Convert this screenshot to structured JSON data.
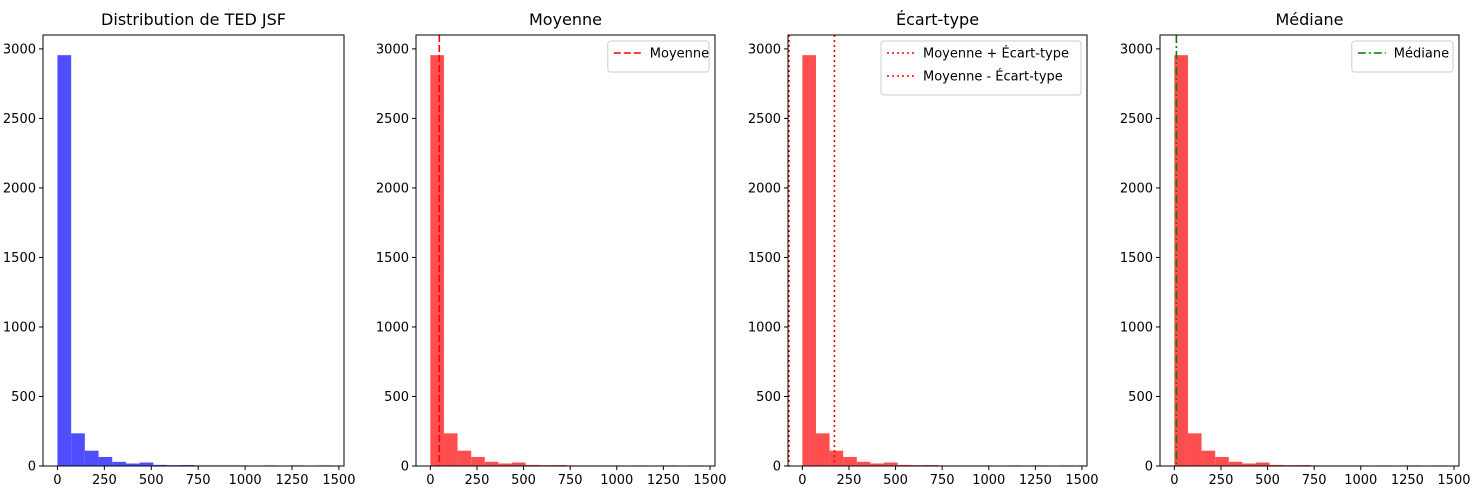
{
  "chart_data": [
    {
      "type": "bar",
      "title": "Distribution de TED JSF",
      "xlabel": "",
      "ylabel": "",
      "xlim": [
        -77,
        1527
      ],
      "ylim": [
        0,
        3100
      ],
      "xticks": [
        "0",
        "250",
        "500",
        "750",
        "1000",
        "1250",
        "1500"
      ],
      "yticks": [
        "0",
        "500",
        "1000",
        "1500",
        "2000",
        "2500",
        "3000"
      ],
      "bins": [
        {
          "start": 0,
          "end": 73,
          "count": 2955
        },
        {
          "start": 73,
          "end": 146,
          "count": 235
        },
        {
          "start": 146,
          "end": 219,
          "count": 110
        },
        {
          "start": 219,
          "end": 292,
          "count": 65
        },
        {
          "start": 292,
          "end": 365,
          "count": 30
        },
        {
          "start": 365,
          "end": 438,
          "count": 18
        },
        {
          "start": 438,
          "end": 511,
          "count": 25
        },
        {
          "start": 511,
          "end": 584,
          "count": 8
        },
        {
          "start": 584,
          "end": 657,
          "count": 6
        },
        {
          "start": 657,
          "end": 730,
          "count": 7
        },
        {
          "start": 730,
          "end": 803,
          "count": 2
        },
        {
          "start": 803,
          "end": 876,
          "count": 1
        },
        {
          "start": 876,
          "end": 949,
          "count": 1
        },
        {
          "start": 949,
          "end": 1022,
          "count": 1
        },
        {
          "start": 1022,
          "end": 1095,
          "count": 0
        },
        {
          "start": 1095,
          "end": 1168,
          "count": 1
        },
        {
          "start": 1168,
          "end": 1241,
          "count": 0
        },
        {
          "start": 1241,
          "end": 1314,
          "count": 1
        },
        {
          "start": 1314,
          "end": 1387,
          "count": 0
        },
        {
          "start": 1387,
          "end": 1460,
          "count": 1
        }
      ],
      "color": "#4444ff",
      "lines": [],
      "legend": []
    },
    {
      "type": "bar",
      "title": "Moyenne",
      "xlabel": "",
      "ylabel": "",
      "xlim": [
        -77,
        1527
      ],
      "ylim": [
        0,
        3100
      ],
      "xticks": [
        "0",
        "250",
        "500",
        "750",
        "1000",
        "1250",
        "1500"
      ],
      "yticks": [
        "0",
        "500",
        "1000",
        "1500",
        "2000",
        "2500",
        "3000"
      ],
      "bins": [
        {
          "start": 0,
          "end": 73,
          "count": 2955
        },
        {
          "start": 73,
          "end": 146,
          "count": 235
        },
        {
          "start": 146,
          "end": 219,
          "count": 110
        },
        {
          "start": 219,
          "end": 292,
          "count": 65
        },
        {
          "start": 292,
          "end": 365,
          "count": 30
        },
        {
          "start": 365,
          "end": 438,
          "count": 18
        },
        {
          "start": 438,
          "end": 511,
          "count": 25
        },
        {
          "start": 511,
          "end": 584,
          "count": 8
        },
        {
          "start": 584,
          "end": 657,
          "count": 6
        },
        {
          "start": 657,
          "end": 730,
          "count": 7
        },
        {
          "start": 730,
          "end": 803,
          "count": 2
        },
        {
          "start": 803,
          "end": 876,
          "count": 1
        },
        {
          "start": 876,
          "end": 949,
          "count": 1
        },
        {
          "start": 949,
          "end": 1022,
          "count": 1
        },
        {
          "start": 1022,
          "end": 1095,
          "count": 0
        },
        {
          "start": 1095,
          "end": 1168,
          "count": 1
        },
        {
          "start": 1168,
          "end": 1241,
          "count": 0
        },
        {
          "start": 1241,
          "end": 1314,
          "count": 1
        },
        {
          "start": 1314,
          "end": 1387,
          "count": 0
        },
        {
          "start": 1387,
          "end": 1460,
          "count": 1
        }
      ],
      "color": "#ff4444",
      "lines": [
        {
          "x": 48,
          "color": "#ff0000",
          "style": "dashed",
          "label": "Moyenne"
        }
      ],
      "legend": [
        {
          "label": "Moyenne",
          "color": "#ff0000",
          "style": "dashed"
        }
      ],
      "legend_position": "top-right"
    },
    {
      "type": "bar",
      "title": "Écart-type",
      "xlabel": "",
      "ylabel": "",
      "xlim": [
        -77,
        1527
      ],
      "ylim": [
        0,
        3100
      ],
      "xticks": [
        "0",
        "250",
        "500",
        "750",
        "1000",
        "1250",
        "1500"
      ],
      "yticks": [
        "0",
        "500",
        "1000",
        "1500",
        "2000",
        "2500",
        "3000"
      ],
      "bins": [
        {
          "start": 0,
          "end": 73,
          "count": 2955
        },
        {
          "start": 73,
          "end": 146,
          "count": 235
        },
        {
          "start": 146,
          "end": 219,
          "count": 110
        },
        {
          "start": 219,
          "end": 292,
          "count": 65
        },
        {
          "start": 292,
          "end": 365,
          "count": 30
        },
        {
          "start": 365,
          "end": 438,
          "count": 18
        },
        {
          "start": 438,
          "end": 511,
          "count": 25
        },
        {
          "start": 511,
          "end": 584,
          "count": 8
        },
        {
          "start": 584,
          "end": 657,
          "count": 6
        },
        {
          "start": 657,
          "end": 730,
          "count": 7
        },
        {
          "start": 730,
          "end": 803,
          "count": 2
        },
        {
          "start": 803,
          "end": 876,
          "count": 1
        },
        {
          "start": 876,
          "end": 949,
          "count": 1
        },
        {
          "start": 949,
          "end": 1022,
          "count": 1
        },
        {
          "start": 1022,
          "end": 1095,
          "count": 0
        },
        {
          "start": 1095,
          "end": 1168,
          "count": 1
        },
        {
          "start": 1168,
          "end": 1241,
          "count": 0
        },
        {
          "start": 1241,
          "end": 1314,
          "count": 1
        },
        {
          "start": 1314,
          "end": 1387,
          "count": 0
        },
        {
          "start": 1387,
          "end": 1460,
          "count": 1
        }
      ],
      "color": "#ff4444",
      "lines": [
        {
          "x": 172,
          "color": "#ff0000",
          "style": "dotted",
          "label": "Moyenne + Écart-type"
        },
        {
          "x": -77,
          "color": "#ff0000",
          "style": "dotted",
          "label": "Moyenne - Écart-type"
        }
      ],
      "legend": [
        {
          "label": "Moyenne + Écart-type",
          "color": "#ff0000",
          "style": "dotted"
        },
        {
          "label": "Moyenne - Écart-type",
          "color": "#ff0000",
          "style": "dotted"
        }
      ],
      "legend_position": "top-right"
    },
    {
      "type": "bar",
      "title": "Médiane",
      "xlabel": "",
      "ylabel": "",
      "xlim": [
        -77,
        1527
      ],
      "ylim": [
        0,
        3100
      ],
      "xticks": [
        "0",
        "250",
        "500",
        "750",
        "1000",
        "1250",
        "1500"
      ],
      "yticks": [
        "0",
        "500",
        "1000",
        "1500",
        "2000",
        "2500",
        "3000"
      ],
      "bins": [
        {
          "start": 0,
          "end": 73,
          "count": 2955
        },
        {
          "start": 73,
          "end": 146,
          "count": 235
        },
        {
          "start": 146,
          "end": 219,
          "count": 110
        },
        {
          "start": 219,
          "end": 292,
          "count": 65
        },
        {
          "start": 292,
          "end": 365,
          "count": 30
        },
        {
          "start": 365,
          "end": 438,
          "count": 18
        },
        {
          "start": 438,
          "end": 511,
          "count": 25
        },
        {
          "start": 511,
          "end": 584,
          "count": 8
        },
        {
          "start": 584,
          "end": 657,
          "count": 6
        },
        {
          "start": 657,
          "end": 730,
          "count": 7
        },
        {
          "start": 730,
          "end": 803,
          "count": 2
        },
        {
          "start": 803,
          "end": 876,
          "count": 1
        },
        {
          "start": 876,
          "end": 949,
          "count": 1
        },
        {
          "start": 949,
          "end": 1022,
          "count": 1
        },
        {
          "start": 1022,
          "end": 1095,
          "count": 0
        },
        {
          "start": 1095,
          "end": 1168,
          "count": 1
        },
        {
          "start": 1168,
          "end": 1241,
          "count": 0
        },
        {
          "start": 1241,
          "end": 1314,
          "count": 1
        },
        {
          "start": 1314,
          "end": 1387,
          "count": 0
        },
        {
          "start": 1387,
          "end": 1460,
          "count": 1
        }
      ],
      "color": "#ff4444",
      "lines": [
        {
          "x": 11,
          "color": "#008000",
          "style": "dashdot",
          "label": "Médiane"
        }
      ],
      "legend": [
        {
          "label": "Médiane",
          "color": "#008000",
          "style": "dashdot"
        }
      ],
      "legend_position": "top-right"
    }
  ]
}
